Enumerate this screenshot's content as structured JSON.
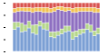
{
  "chart_data": {
    "type": "bar",
    "stacked": true,
    "tick_labels": false,
    "grid": false,
    "categories": [
      null,
      null,
      null,
      null,
      null,
      null,
      null,
      null,
      null,
      null,
      null,
      null,
      null,
      null,
      null,
      null,
      null,
      null,
      null,
      null,
      null,
      null,
      null,
      null
    ],
    "ylim": [
      0,
      100
    ],
    "yticks": [
      0,
      25,
      50,
      75,
      100
    ],
    "series": [
      {
        "color": "#7b9fd4",
        "values": [
          45,
          50,
          40,
          42,
          48,
          38,
          35,
          52,
          46,
          44,
          30,
          28,
          33,
          36,
          40,
          42,
          25,
          30,
          35,
          38,
          45,
          40,
          32,
          36
        ]
      },
      {
        "color": "#b5d68a",
        "values": [
          15,
          10,
          18,
          12,
          14,
          16,
          20,
          10,
          12,
          15,
          10,
          12,
          8,
          10,
          12,
          10,
          15,
          12,
          10,
          8,
          12,
          14,
          10,
          12
        ]
      },
      {
        "color": "#8e6fc1",
        "values": [
          20,
          22,
          25,
          28,
          20,
          26,
          27,
          20,
          22,
          21,
          40,
          42,
          45,
          38,
          30,
          32,
          40,
          38,
          37,
          36,
          25,
          28,
          38,
          32
        ]
      },
      {
        "color": "#f2c14e",
        "values": [
          8,
          8,
          7,
          8,
          8,
          9,
          8,
          8,
          10,
          10,
          8,
          8,
          6,
          8,
          8,
          6,
          8,
          10,
          8,
          8,
          8,
          8,
          10,
          8
        ]
      },
      {
        "color": "#d9534f",
        "values": [
          12,
          10,
          10,
          10,
          10,
          11,
          10,
          10,
          10,
          10,
          12,
          10,
          8,
          8,
          10,
          10,
          12,
          10,
          10,
          10,
          10,
          10,
          10,
          12
        ]
      }
    ]
  }
}
